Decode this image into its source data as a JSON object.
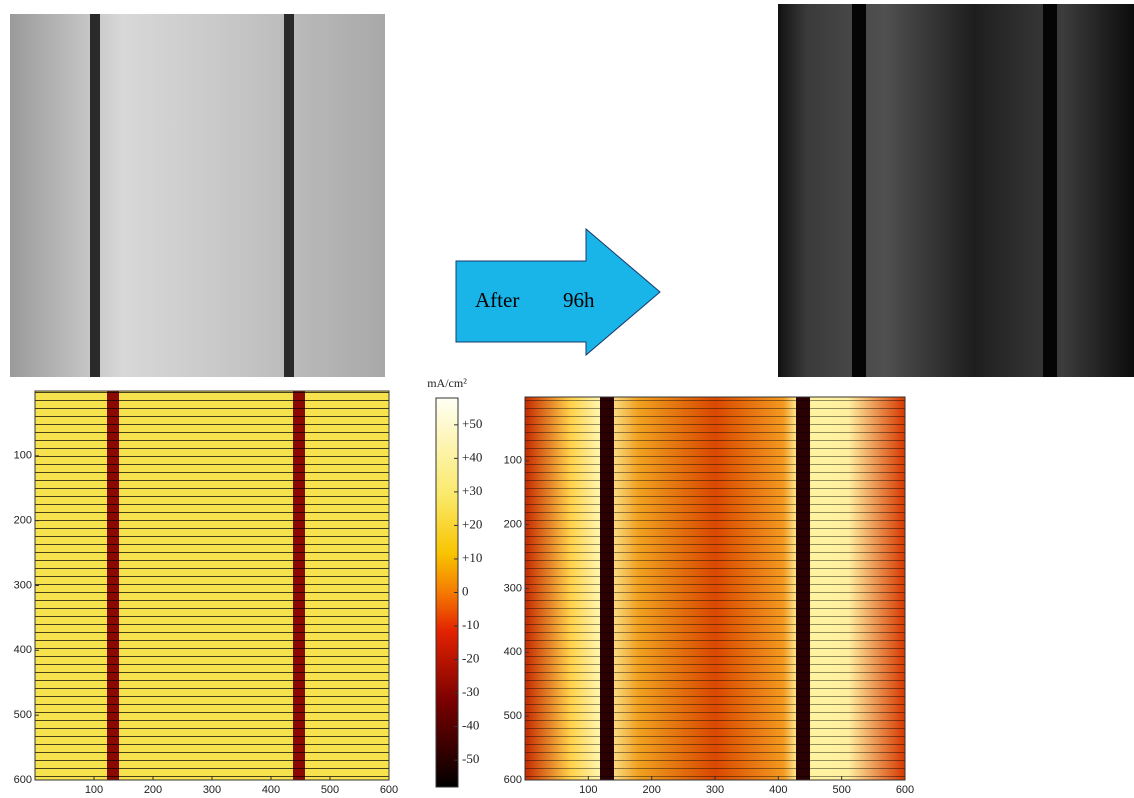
{
  "arrow": {
    "label1": "After",
    "label2": "96h"
  },
  "colorbar": {
    "label": "mA/cm²",
    "lim": [
      -58,
      58
    ],
    "ticks": [
      {
        "value": 50,
        "label": "+50"
      },
      {
        "value": 40,
        "label": "+40"
      },
      {
        "value": 30,
        "label": "+30"
      },
      {
        "value": 20,
        "label": "+20"
      },
      {
        "value": 10,
        "label": "+10"
      },
      0,
      -10,
      -20,
      -30,
      -40,
      -50
    ]
  },
  "heatmaps": [
    {
      "xlim": [
        0,
        600
      ],
      "ylim": [
        0,
        600
      ],
      "xticks": [
        100,
        200,
        300,
        400,
        500,
        600
      ],
      "yticks": [
        100,
        200,
        300,
        400,
        500,
        600
      ]
    },
    {
      "xlim": [
        0,
        600
      ],
      "ylim": [
        0,
        600
      ],
      "xticks": [
        100,
        200,
        300,
        400,
        500,
        600
      ],
      "yticks": [
        100,
        200,
        300,
        400,
        500,
        600
      ]
    }
  ]
}
